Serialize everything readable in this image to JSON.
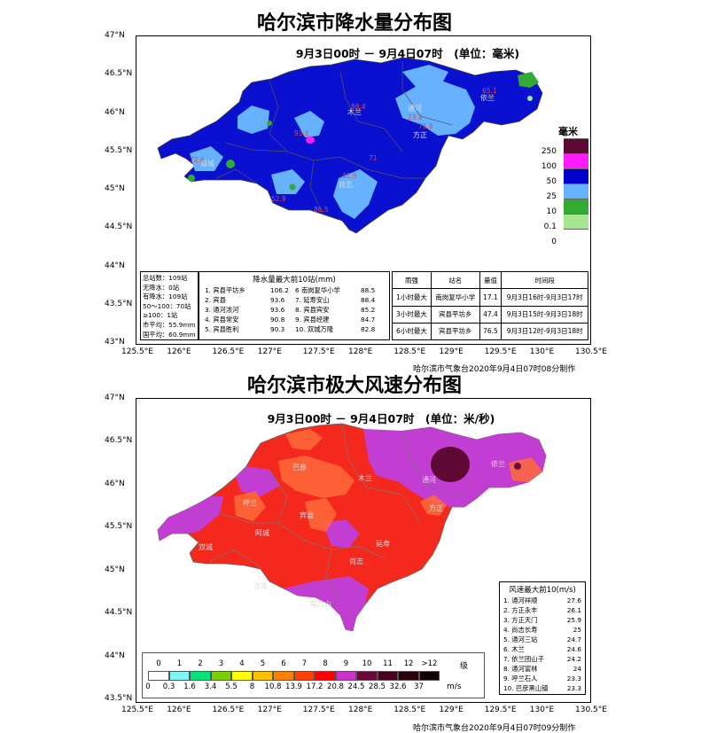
{
  "rain": {
    "title": "哈尔滨市降水量分布图",
    "subtitle": "9月3日00时 － 9月4日07时　(单位：毫米)",
    "lat_labels": [
      "47°N",
      "46.5°N",
      "46°N",
      "45.5°N",
      "45°N",
      "44.5°N",
      "44°N",
      "43.5°N",
      "43°N"
    ],
    "lon_labels": [
      "125.5°E",
      "126°E",
      "126.5°E",
      "127°E",
      "127.5°E",
      "128°E",
      "128.5°E",
      "129°E",
      "129.5°E",
      "130°E",
      "130.5°E"
    ],
    "legend_title": "毫米",
    "legend_labels": [
      "250",
      "100",
      "50",
      "25",
      "10",
      "0.1",
      "0"
    ],
    "legend_colors": [
      "#5c0a33",
      "#ff1aff",
      "#0000cc",
      "#66b2ff",
      "#33aa33",
      "#a6e691",
      "#ffffff"
    ],
    "stats": [
      "总站数：109站",
      "无降水：0站",
      "有降水：109站",
      "50～100：70站",
      "≥100：1站",
      "市平均：55.9mm",
      "国平均：60.9mm"
    ],
    "top10_title": "降水量最大前10站(mm)",
    "top10_left": [
      {
        "name": "1. 宾县平坊乡",
        "val": "106.2"
      },
      {
        "name": "2. 宾县",
        "val": "93.6"
      },
      {
        "name": "3. 通河浓河",
        "val": "93.6"
      },
      {
        "name": "4. 宾县常安",
        "val": "90.8"
      },
      {
        "name": "5. 宾县胜利",
        "val": "90.3"
      }
    ],
    "top10_right": [
      {
        "name": "6 南岗复华小学",
        "val": "88.5"
      },
      {
        "name": "7. 延寿安山",
        "val": "88.4"
      },
      {
        "name": "8. 宾县宾安",
        "val": "85.2"
      },
      {
        "name": "9. 宾县经建",
        "val": "84.7"
      },
      {
        "name": "10. 双城万隆",
        "val": "82.8"
      }
    ],
    "intensity_headers": [
      "雨强",
      "站名",
      "量值",
      "时间段"
    ],
    "intensity_rows": [
      [
        "1小时最大",
        "南岗复华小学",
        "17.1",
        "9月3日16时-9月3日17时"
      ],
      [
        "3小时最大",
        "宾县平坊乡",
        "47.4",
        "9月3日15时-9月3日18时"
      ],
      [
        "6小时最大",
        "宾县平坊乡",
        "76.5",
        "9月3日12时-9月3日18时"
      ]
    ],
    "credit": "哈尔滨市气象台2020年9月4日07时08分制作",
    "place_labels": [
      "通河",
      "方正",
      "尚志",
      "双城",
      "木兰",
      "依兰"
    ],
    "value_labels": [
      "65.1",
      "93.6",
      "41.9",
      "71",
      "72.6",
      "23.4",
      "75.8",
      "86.5",
      "52.9",
      "88.4"
    ]
  },
  "wind": {
    "title": "哈尔滨市极大风速分布图",
    "subtitle": "9月3日00时 － 9月4日07时　(单位：米/秒)",
    "lat_labels": [
      "47°N",
      "46.5°N",
      "46°N",
      "45.5°N",
      "45°N",
      "44.5°N",
      "44°N",
      "43.5°N"
    ],
    "lon_labels": [
      "125.5°E",
      "126°E",
      "126.5°E",
      "127°E",
      "127.5°E",
      "128°E",
      "128.5°E",
      "129°E",
      "129.5°E",
      "130°E",
      "130.5°E"
    ],
    "levels": [
      "0",
      "1",
      "2",
      "3",
      "4",
      "5",
      "6",
      "7",
      "8",
      "9",
      "10",
      "11",
      "12",
      ">12"
    ],
    "level_unit": "级",
    "speeds": [
      "0",
      "0.3",
      "1.6",
      "3.4",
      "5.5",
      "8",
      "10.8",
      "13.9",
      "17.2",
      "20.8",
      "24.5",
      "28.5",
      "32.6",
      "37"
    ],
    "speed_unit": "m/s",
    "colors": [
      "#ffffff",
      "#7ff5f5",
      "#00e676",
      "#7ccf00",
      "#ffff00",
      "#ffc000",
      "#ff8000",
      "#ff4000",
      "#ff0000",
      "#cc33cc",
      "#6a0a3a",
      "#4a0020",
      "#2a0010",
      "#100008"
    ],
    "top10_title": "风速最大前10(m/s)",
    "top10": [
      {
        "name": "1. 通河祥顺",
        "val": "27.6"
      },
      {
        "name": "2. 方正永丰",
        "val": "26.1"
      },
      {
        "name": "3. 方正天门",
        "val": "25.9"
      },
      {
        "name": "4. 尚志长寿",
        "val": "25"
      },
      {
        "name": "5. 通河三站",
        "val": "24.7"
      },
      {
        "name": "6. 木兰",
        "val": "24.6"
      },
      {
        "name": "7. 依兰团山子",
        "val": "24.2"
      },
      {
        "name": "8. 通河富林",
        "val": "24"
      },
      {
        "name": "9. 呼兰石人",
        "val": "23.3"
      },
      {
        "name": "10. 巴彦黑山镇",
        "val": "23.3"
      }
    ],
    "credit": "哈尔滨市气象台2020年9月4日07时09分制作",
    "place_labels": [
      "巴彦",
      "木兰",
      "通河",
      "方正",
      "宾县",
      "呼兰",
      "双城",
      "阿城",
      "延寿",
      "尚志",
      "五常",
      "依兰",
      "帽儿山"
    ]
  }
}
